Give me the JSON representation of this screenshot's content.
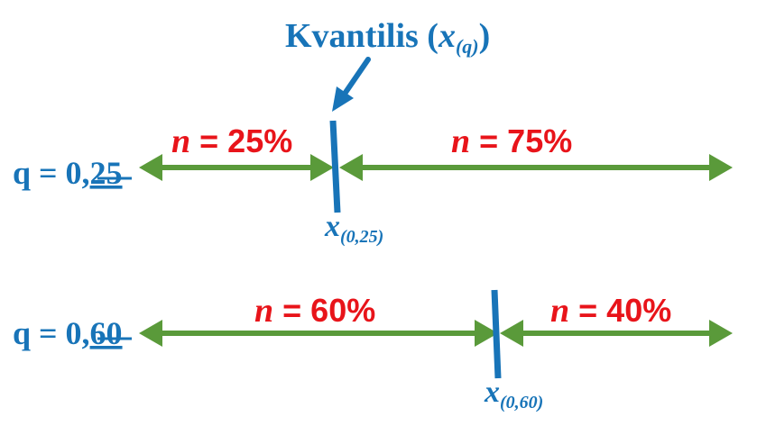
{
  "title": {
    "text": "Kvantilis (",
    "var": "x",
    "sub": "(q)",
    "close": ")"
  },
  "rows": [
    {
      "q_prefix": "q = 0,",
      "q_digits": "25",
      "left_var": "n",
      "left_text": " = 25%",
      "right_var": "n",
      "right_text": " = 75%",
      "marker_var": "x",
      "marker_sub": "(0,25)",
      "fraction": 0.25
    },
    {
      "q_prefix": "q = 0,",
      "q_digits": "60",
      "left_var": "n",
      "left_text": " = 60%",
      "right_var": "n",
      "right_text": " = 40%",
      "marker_var": "x",
      "marker_sub": "(0,60)",
      "fraction": 0.6
    }
  ],
  "colors": {
    "arrow": "#5a9a3a",
    "marker": "#1874b8",
    "percent": "#e8141a",
    "label": "#1874b8"
  }
}
